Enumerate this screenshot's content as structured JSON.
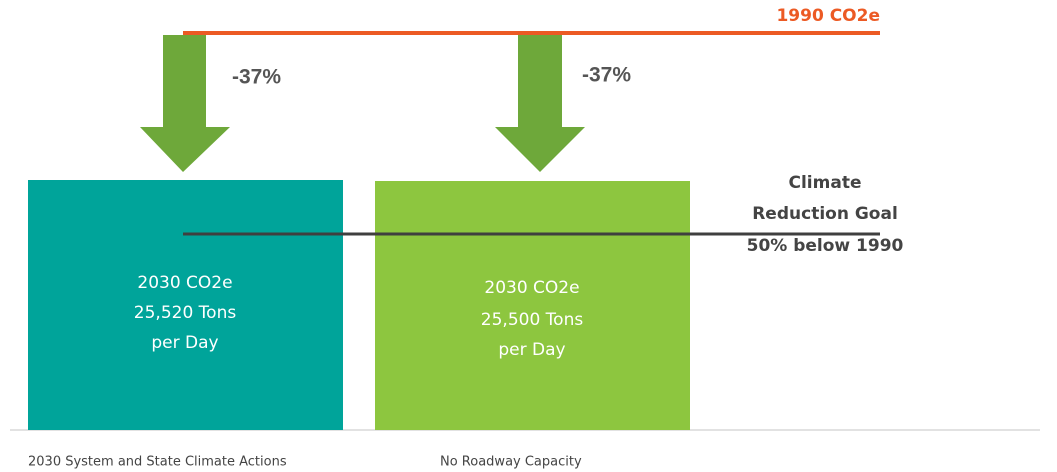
{
  "reference_line": {
    "label": "1990 CO2e"
  },
  "goal": {
    "lines": [
      "Climate",
      "Reduction Goal",
      "50% below 1990"
    ]
  },
  "bars": [
    {
      "arrow_label": "-37%",
      "lines": [
        "2030 CO2e",
        "25,520 Tons",
        "per Day"
      ],
      "label": "2030 System and State Climate Actions"
    },
    {
      "arrow_label": "-37%",
      "lines": [
        "2030 CO2e",
        "25,500 Tons",
        "per Day"
      ],
      "label": "No Roadway Capacity"
    }
  ]
}
